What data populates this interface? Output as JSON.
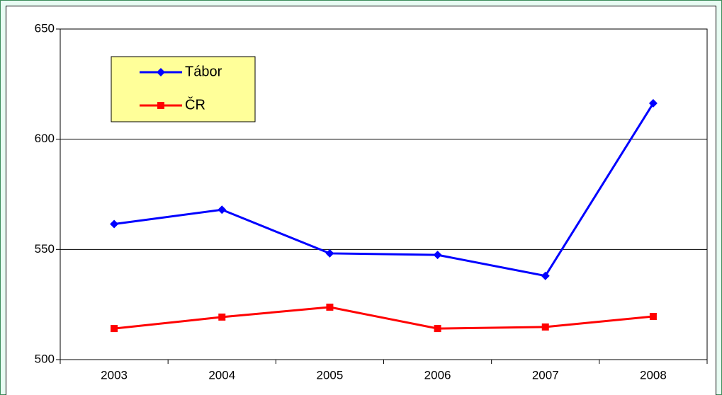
{
  "chart_data": {
    "type": "line",
    "categories": [
      "2003",
      "2004",
      "2005",
      "2006",
      "2007",
      "2008"
    ],
    "series": [
      {
        "name": "Tábor",
        "color": "#0000ff",
        "marker": "diamond",
        "values": [
          561.5,
          568,
          548.2,
          547.5,
          538,
          616.3
        ]
      },
      {
        "name": "ČR",
        "color": "#ff0000",
        "marker": "square",
        "values": [
          514.1,
          519.3,
          523.8,
          514.1,
          514.8,
          519.6
        ]
      }
    ],
    "ylim": [
      500,
      650
    ],
    "yticks": [
      500,
      550,
      600,
      650
    ],
    "grid": true,
    "legend": "top-left"
  }
}
